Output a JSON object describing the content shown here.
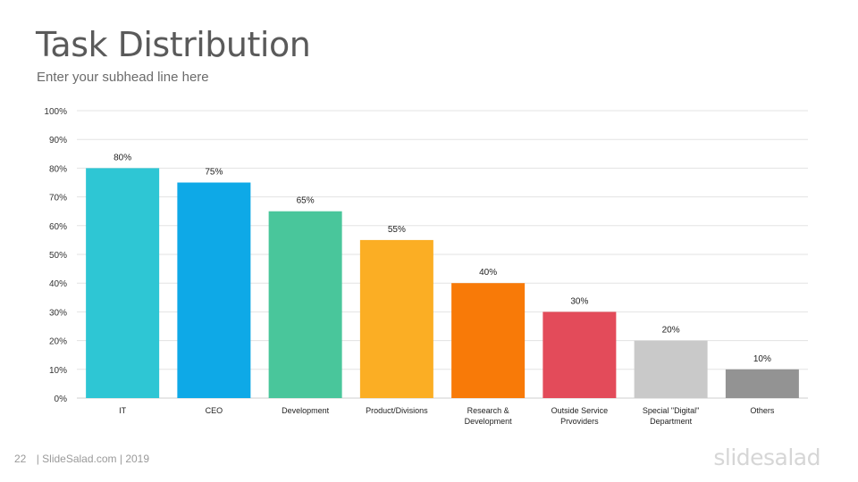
{
  "slide": {
    "title": "Task Distribution",
    "subtitle": "Enter your subhead line here"
  },
  "footer": {
    "page_number": "22",
    "credit": "| SlideSalad.com | 2019",
    "logo": "slidesalad"
  },
  "chart_data": {
    "type": "bar",
    "categories": [
      [
        "IT"
      ],
      [
        "CEO"
      ],
      [
        "Development"
      ],
      [
        "Product/Divisions"
      ],
      [
        "Research &",
        "Development"
      ],
      [
        "Outside Service",
        "Prvoviders"
      ],
      [
        "Special \"Digital\"",
        "Department"
      ],
      [
        "Others"
      ]
    ],
    "values": [
      80,
      75,
      65,
      55,
      40,
      30,
      20,
      10
    ],
    "value_labels": [
      "80%",
      "75%",
      "65%",
      "55%",
      "40%",
      "30%",
      "20%",
      "10%"
    ],
    "colors": [
      "#2ec6d4",
      "#0ea9e7",
      "#49c69b",
      "#fbae24",
      "#f87a08",
      "#e34b5a",
      "#c9c9c9",
      "#939393"
    ],
    "ylim": [
      0,
      100
    ],
    "yticks": [
      0,
      10,
      20,
      30,
      40,
      50,
      60,
      70,
      80,
      90,
      100
    ],
    "ytick_labels": [
      "0%",
      "10%",
      "20%",
      "30%",
      "40%",
      "50%",
      "60%",
      "70%",
      "80%",
      "90%",
      "100%"
    ],
    "grid": true,
    "legend": "none"
  }
}
